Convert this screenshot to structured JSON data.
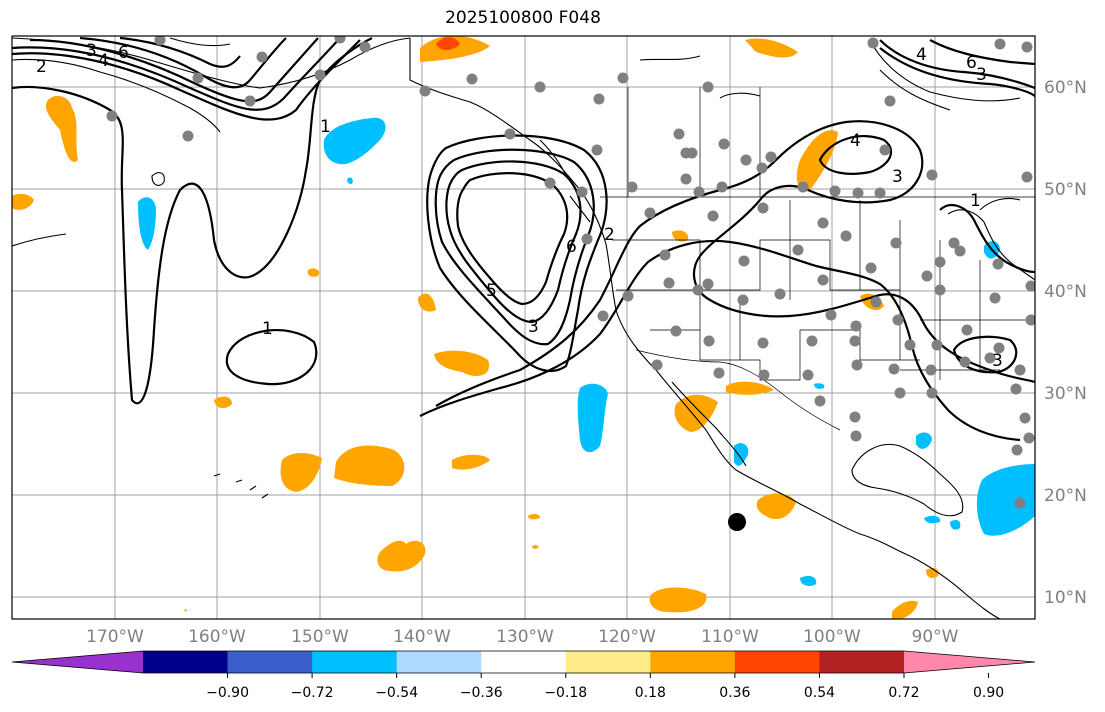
{
  "title": "2025100800 F048",
  "lon_labels": [
    "170°W",
    "160°W",
    "150°W",
    "140°W",
    "130°W",
    "120°W",
    "110°W",
    "100°W",
    "90°W"
  ],
  "lat_labels": [
    "60°N",
    "50°N",
    "40°N",
    "30°N",
    "20°N",
    "10°N"
  ],
  "colorbar": {
    "ticks": [
      "−0.90",
      "−0.72",
      "−0.54",
      "−0.36",
      "−0.18",
      "0.18",
      "0.36",
      "0.54",
      "0.72",
      "0.90"
    ],
    "colors": [
      "#9932cc",
      "#00008b",
      "#3a5fcd",
      "#00bfff",
      "#add8ff",
      "#ffffff",
      "#ffec8b",
      "#ffa500",
      "#ff4500",
      "#b22222",
      "#ff88aa"
    ]
  },
  "contour_labels": [
    "2",
    "3",
    "4",
    "6",
    "1",
    "1",
    "5",
    "6",
    "2",
    "3",
    "4",
    "3",
    "4",
    "6",
    "3",
    "3",
    "1"
  ],
  "colors": {
    "positive_anomaly": "#ffa500",
    "strong_positive": "#ff4500",
    "negative_anomaly": "#00bfff",
    "station_dot": "#808080",
    "marker": "#000000"
  }
}
